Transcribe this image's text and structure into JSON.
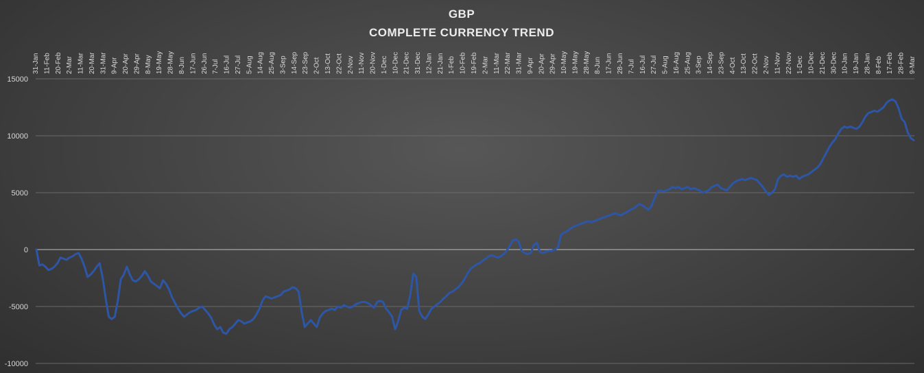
{
  "chart_data": {
    "type": "line",
    "title": "GBP",
    "subtitle": "COMPLETE CURRENCY TREND",
    "xlabel": "",
    "ylabel": "",
    "ylim": [
      -10000,
      15000
    ],
    "yticks": [
      15000,
      10000,
      5000,
      0,
      -5000,
      -10000
    ],
    "ytick_labels": [
      "15000",
      "10000",
      "5000",
      "0",
      "-5000",
      "-10000"
    ],
    "grid": true,
    "legend": "none",
    "line_color": "#2e56a6",
    "x_tick_labels": [
      "31-Jan",
      "11-Feb",
      "20-Feb",
      "2-Mar",
      "11-Mar",
      "20-Mar",
      "31-Mar",
      "9-Apr",
      "20-Apr",
      "29-Apr",
      "8-May",
      "19-May",
      "28-May",
      "8-Jun",
      "17-Jun",
      "26-Jun",
      "7-Jul",
      "16-Jul",
      "27-Jul",
      "5-Aug",
      "14-Aug",
      "25-Aug",
      "3-Sep",
      "14-Sep",
      "23-Sep",
      "2-Oct",
      "13-Oct",
      "22-Oct",
      "2-Nov",
      "11-Nov",
      "20-Nov",
      "1-Dec",
      "10-Dec",
      "21-Dec",
      "31-Dec",
      "12-Jan",
      "21-Jan",
      "1-Feb",
      "10-Feb",
      "19-Feb",
      "2-Mar",
      "11-Mar",
      "22-Mar",
      "31-Mar",
      "9-Apr",
      "20-Apr",
      "29-Apr",
      "10-May",
      "19-May",
      "28-May",
      "8-Jun",
      "17-Jun",
      "28-Jun",
      "7-Jul",
      "16-Jul",
      "27-Jul",
      "5-Aug",
      "16-Aug",
      "25-Aug",
      "3-Sep",
      "14-Sep",
      "23-Sep",
      "4-Oct",
      "13-Oct",
      "22-Oct",
      "2-Nov",
      "11-Nov",
      "22-Nov",
      "1-Dec",
      "10-Dec",
      "21-Dec",
      "30-Dec",
      "10-Jan",
      "19-Jan",
      "28-Jan",
      "8-Feb",
      "17-Feb",
      "28-Feb",
      "9-Mar"
    ],
    "series": [
      {
        "values": [
          0,
          -1400,
          -1300,
          -1500,
          -1800,
          -1700,
          -1500,
          -1200,
          -700,
          -800,
          -900,
          -700,
          -600,
          -400,
          -300,
          -800,
          -1500,
          -2400,
          -2200,
          -1900,
          -1500,
          -1200,
          -2500,
          -4300,
          -5900,
          -6100,
          -5900,
          -4500,
          -2600,
          -2200,
          -1500,
          -2200,
          -2700,
          -2800,
          -2600,
          -2300,
          -1900,
          -2300,
          -2800,
          -3000,
          -3200,
          -3400,
          -2700,
          -3000,
          -3500,
          -4200,
          -4700,
          -5200,
          -5600,
          -5900,
          -5700,
          -5500,
          -5400,
          -5300,
          -5100,
          -5000,
          -5300,
          -5600,
          -6000,
          -6600,
          -7000,
          -6800,
          -7300,
          -7400,
          -7000,
          -6800,
          -6500,
          -6200,
          -6300,
          -6500,
          -6400,
          -6300,
          -6100,
          -5700,
          -5200,
          -4500,
          -4100,
          -4200,
          -4300,
          -4200,
          -4100,
          -4000,
          -3700,
          -3600,
          -3500,
          -3300,
          -3400,
          -3700,
          -5500,
          -6800,
          -6500,
          -6200,
          -6500,
          -6800,
          -6000,
          -5600,
          -5400,
          -5300,
          -5200,
          -5300,
          -5000,
          -5100,
          -4900,
          -5000,
          -5100,
          -5000,
          -4800,
          -4700,
          -4600,
          -4600,
          -4700,
          -4900,
          -5100,
          -4600,
          -4500,
          -4600,
          -5200,
          -5500,
          -5900,
          -7000,
          -6300,
          -5300,
          -5100,
          -5200,
          -4000,
          -2100,
          -2400,
          -5400,
          -5900,
          -6100,
          -5700,
          -5200,
          -5000,
          -4800,
          -4600,
          -4300,
          -4100,
          -3800,
          -3700,
          -3500,
          -3300,
          -3000,
          -2600,
          -2100,
          -1700,
          -1500,
          -1300,
          -1200,
          -1000,
          -800,
          -600,
          -500,
          -600,
          -700,
          -600,
          -400,
          -100,
          300,
          800,
          900,
          700,
          -100,
          -300,
          -400,
          -300,
          400,
          600,
          -200,
          -300,
          -200,
          -100,
          -100,
          0,
          200,
          1300,
          1500,
          1600,
          1800,
          2000,
          2100,
          2200,
          2300,
          2400,
          2500,
          2400,
          2500,
          2600,
          2700,
          2800,
          2900,
          3000,
          3100,
          3200,
          3100,
          3000,
          3200,
          3300,
          3500,
          3600,
          3800,
          4000,
          3900,
          3700,
          3500,
          3800,
          4500,
          5100,
          5200,
          5100,
          5200,
          5300,
          5500,
          5400,
          5500,
          5300,
          5400,
          5500,
          5300,
          5400,
          5300,
          5200,
          5000,
          5100,
          5200,
          5500,
          5600,
          5700,
          5400,
          5300,
          5200,
          5500,
          5800,
          6000,
          6100,
          6200,
          6100,
          6200,
          6300,
          6200,
          6100,
          5800,
          5500,
          5100,
          4800,
          5000,
          5300,
          6200,
          6500,
          6600,
          6400,
          6500,
          6400,
          6500,
          6200,
          6400,
          6500,
          6600,
          6800,
          7000,
          7200,
          7500,
          8000,
          8500,
          9000,
          9400,
          9700,
          10200,
          10600,
          10800,
          10700,
          10800,
          10700,
          10600,
          10800,
          11200,
          11700,
          12000,
          12100,
          12200,
          12100,
          12300,
          12500,
          12900,
          13100,
          13200,
          13000,
          12400,
          11500,
          11200,
          10300,
          9800,
          9600
        ]
      }
    ]
  }
}
